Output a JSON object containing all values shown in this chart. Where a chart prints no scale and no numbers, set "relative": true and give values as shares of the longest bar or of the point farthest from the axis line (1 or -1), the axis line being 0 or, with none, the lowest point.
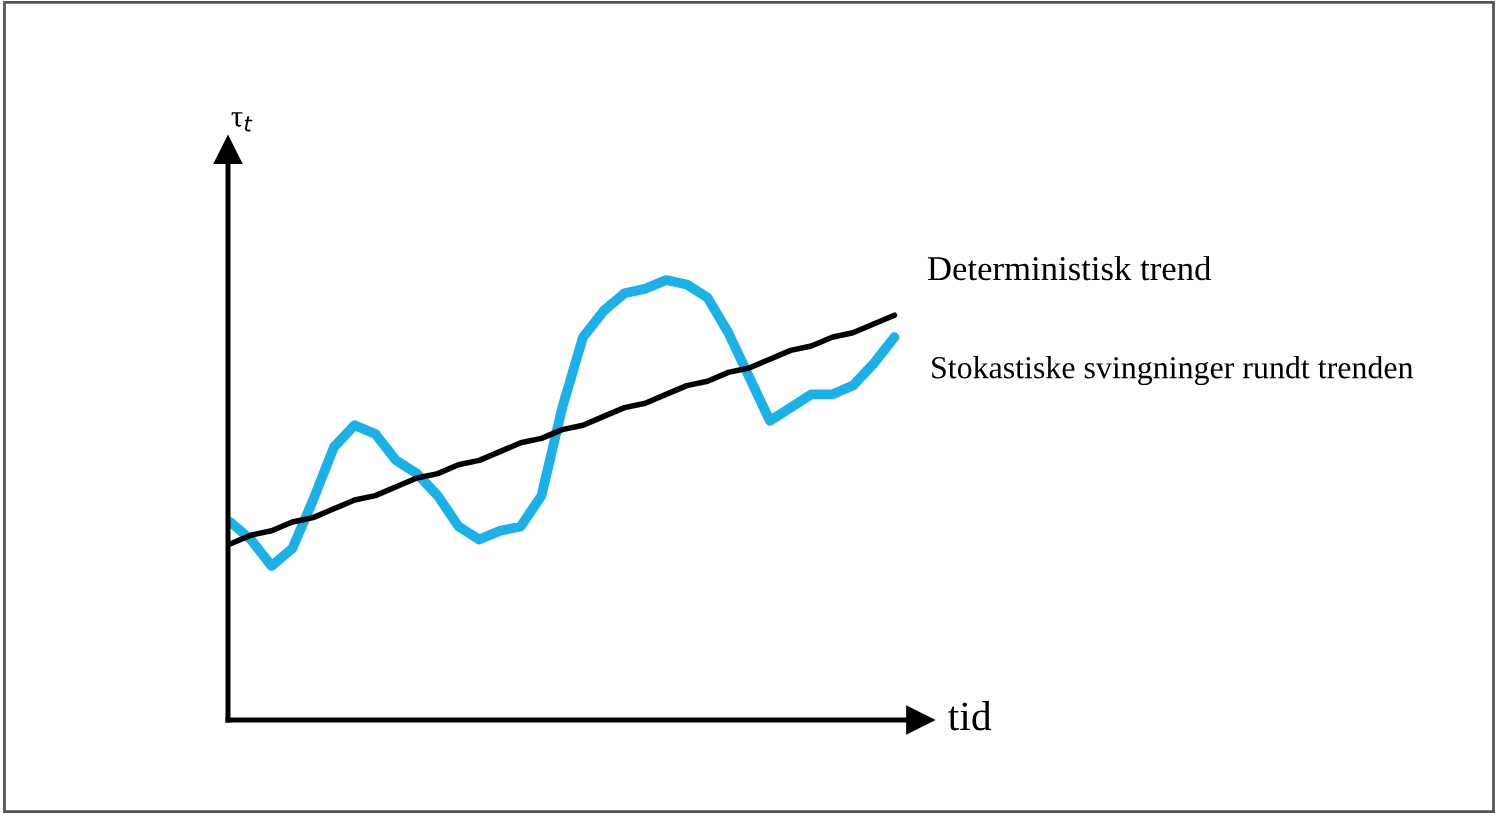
{
  "chart_data": {
    "type": "line",
    "relative": true,
    "xlabel": "tid",
    "ylabel": "τ$_{t}$",
    "legend": false,
    "marker": "none",
    "line_style": "solid",
    "categories": [
      null,
      null,
      null,
      null,
      null,
      null,
      null,
      null,
      null,
      null,
      null,
      null,
      null,
      null,
      null,
      null,
      null,
      null,
      null,
      null,
      null,
      null,
      null,
      null,
      null,
      null,
      null,
      null,
      null,
      null,
      null,
      null,
      null
    ],
    "series": [
      {
        "name": "Stokastiske svingninger rundt trenden",
        "color": "#1ab0e8",
        "values": [
          0.45,
          0.41,
          0.35,
          0.39,
          0.5,
          0.62,
          0.67,
          0.65,
          0.59,
          0.56,
          0.51,
          0.44,
          0.41,
          0.43,
          0.44,
          0.51,
          0.71,
          0.87,
          0.93,
          0.97,
          0.98,
          1,
          0.99,
          0.96,
          0.88,
          0.78,
          0.68,
          0.71,
          0.74,
          0.74,
          0.76,
          0.81,
          0.87
        ]
      },
      {
        "name": "Deterministisk trend",
        "color": "#000000",
        "values": [
          0.4,
          0.42,
          0.43,
          0.45,
          0.46,
          0.48,
          0.5,
          0.51,
          0.53,
          0.55,
          0.56,
          0.58,
          0.59,
          0.61,
          0.63,
          0.64,
          0.66,
          0.67,
          0.69,
          0.71,
          0.72,
          0.74,
          0.76,
          0.77,
          0.79,
          0.8,
          0.82,
          0.84,
          0.85,
          0.87,
          0.88,
          0.9,
          0.92
        ]
      }
    ]
  }
}
